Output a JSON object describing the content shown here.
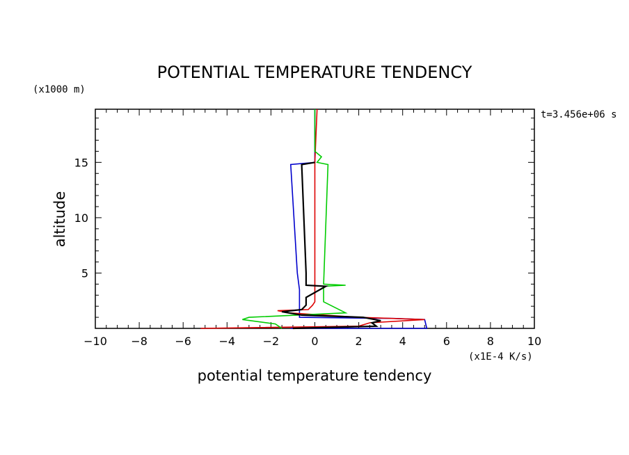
{
  "chart_data": {
    "type": "line",
    "title": "POTENTIAL TEMPERATURE TENDENCY",
    "xlabel": "potential temperature tendency",
    "ylabel": "altitude",
    "x_units": "(x1E-4 K/s)",
    "y_units": "(x1000 m)",
    "time_label": "t=3.456e+06 s",
    "xlim": [
      -10,
      10
    ],
    "ylim": [
      0,
      19.8
    ],
    "x_ticks": [
      -10,
      -8,
      -6,
      -4,
      -2,
      0,
      2,
      4,
      6,
      8,
      10
    ],
    "y_ticks": [
      5,
      10,
      15
    ],
    "grid": false,
    "legend": "none",
    "series": [
      {
        "color": "#0000cc",
        "points": [
          [
            -1.1,
            0.0
          ],
          [
            5.1,
            0.0
          ],
          [
            5.0,
            0.8
          ],
          [
            3.6,
            0.9
          ],
          [
            -0.7,
            1.0
          ],
          [
            -0.7,
            1.5
          ],
          [
            -0.7,
            3.5
          ],
          [
            -0.8,
            5
          ],
          [
            -1.1,
            14.8
          ],
          [
            0.0,
            15.0
          ],
          [
            0.0,
            19.8
          ]
        ]
      },
      {
        "color": "#dd0000",
        "points": [
          [
            -5.2,
            0.0
          ],
          [
            2.0,
            0.2
          ],
          [
            2.5,
            0.5
          ],
          [
            5.0,
            0.8
          ],
          [
            2.0,
            1.0
          ],
          [
            -1.2,
            1.4
          ],
          [
            -1.7,
            1.6
          ],
          [
            -0.3,
            1.7
          ],
          [
            -0.1,
            2.1
          ],
          [
            0.0,
            2.4
          ],
          [
            0.0,
            15.0
          ],
          [
            0.1,
            19.8
          ]
        ]
      },
      {
        "color": "#00cc00",
        "points": [
          [
            -1.5,
            0.0
          ],
          [
            -1.8,
            0.4
          ],
          [
            -3.3,
            0.8
          ],
          [
            -3.0,
            1.0
          ],
          [
            1.4,
            1.4
          ],
          [
            0.4,
            2.4
          ],
          [
            0.4,
            3.8
          ],
          [
            1.4,
            3.9
          ],
          [
            0.4,
            4.0
          ],
          [
            0.6,
            14.8
          ],
          [
            0.1,
            15.0
          ],
          [
            0.3,
            15.5
          ],
          [
            0.0,
            16.0
          ],
          [
            0.0,
            19.8
          ]
        ]
      },
      {
        "color": "#000000",
        "points": [
          [
            -1.0,
            0.0
          ],
          [
            2.8,
            0.2
          ],
          [
            2.6,
            0.5
          ],
          [
            3.0,
            0.7
          ],
          [
            2.2,
            1.0
          ],
          [
            -0.6,
            1.2
          ],
          [
            -1.5,
            1.5
          ],
          [
            -0.6,
            1.7
          ],
          [
            -0.4,
            2.1
          ],
          [
            -0.4,
            2.8
          ],
          [
            0.5,
            3.8
          ],
          [
            -0.4,
            3.9
          ],
          [
            -0.4,
            5
          ],
          [
            -0.6,
            14.8
          ],
          [
            0.0,
            15.0
          ]
        ]
      }
    ]
  }
}
